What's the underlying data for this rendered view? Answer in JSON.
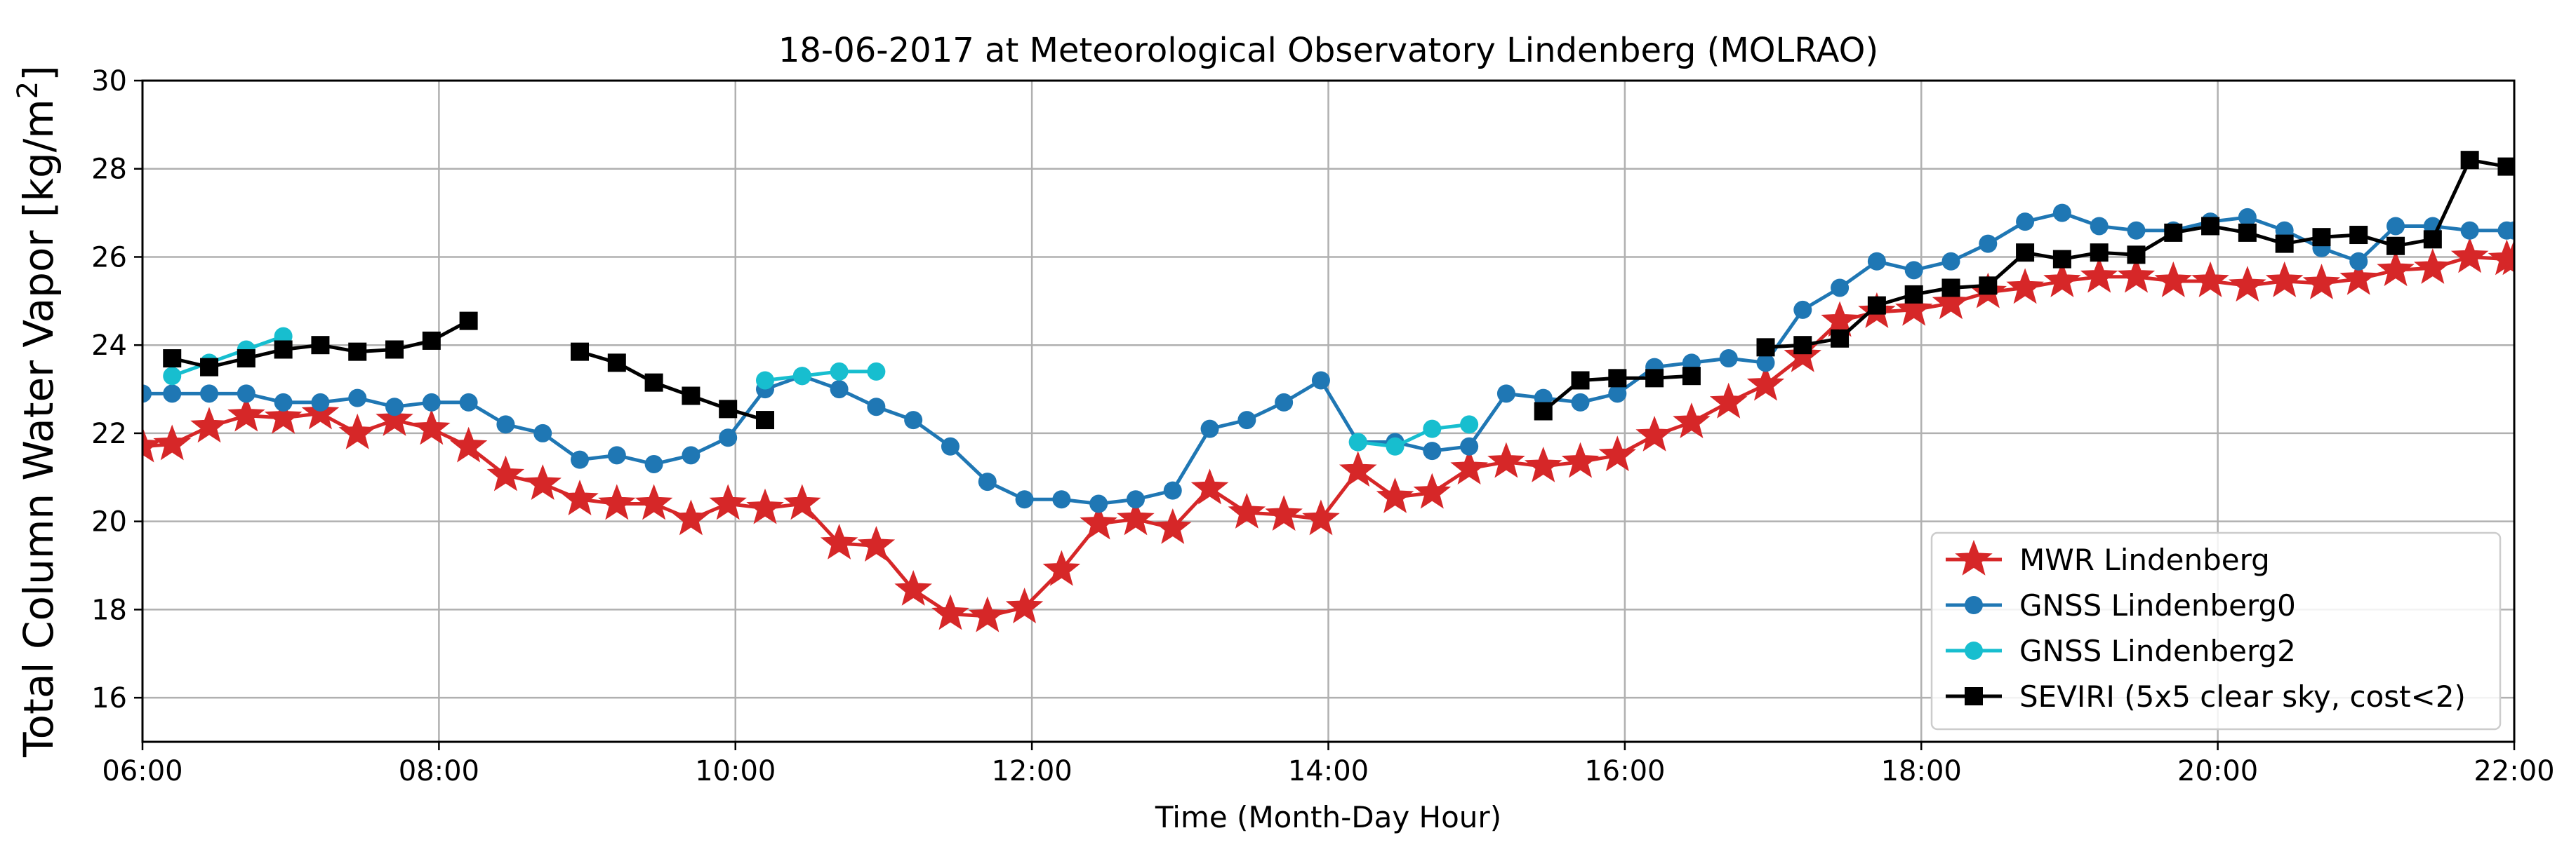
{
  "chart_data": {
    "type": "line",
    "title": "18-06-2017 at Meteorological Observatory Lindenberg (MOLRAO)",
    "xlabel": "Time (Month-Day Hour)",
    "ylabel": "Total Column Water Vapor [kg/m",
    "ylabel_superscript": "2",
    "ylabel_close": "]",
    "xlim": [
      6.0,
      22.0
    ],
    "ylim": [
      15.0,
      30.0
    ],
    "xticks": [
      6,
      8,
      10,
      12,
      14,
      16,
      18,
      20,
      22
    ],
    "xtick_labels": [
      "06:00",
      "08:00",
      "10:00",
      "12:00",
      "14:00",
      "16:00",
      "18:00",
      "20:00",
      "22:00"
    ],
    "yticks": [
      16,
      18,
      20,
      22,
      24,
      26,
      28,
      30
    ],
    "ytick_labels": [
      "16",
      "18",
      "20",
      "22",
      "24",
      "26",
      "28",
      "30"
    ],
    "grid": true,
    "legend_position": "lower-right",
    "series": [
      {
        "name": "MWR Lindenberg",
        "color": "#d62728",
        "marker": "star",
        "segments": [
          [
            [
              6.0,
              21.7
            ],
            [
              6.2,
              21.75
            ],
            [
              6.45,
              22.15
            ],
            [
              6.7,
              22.4
            ],
            [
              6.95,
              22.35
            ],
            [
              7.2,
              22.45
            ],
            [
              7.45,
              22.0
            ],
            [
              7.7,
              22.3
            ],
            [
              7.95,
              22.1
            ],
            [
              8.2,
              21.7
            ],
            [
              8.45,
              21.05
            ],
            [
              8.7,
              20.85
            ],
            [
              8.95,
              20.5
            ],
            [
              9.2,
              20.4
            ],
            [
              9.45,
              20.4
            ],
            [
              9.7,
              20.05
            ],
            [
              9.95,
              20.4
            ],
            [
              10.2,
              20.3
            ],
            [
              10.45,
              20.4
            ],
            [
              10.7,
              19.5
            ],
            [
              10.95,
              19.45
            ],
            [
              11.2,
              18.45
            ],
            [
              11.45,
              17.9
            ],
            [
              11.7,
              17.85
            ],
            [
              11.95,
              18.05
            ],
            [
              12.2,
              18.9
            ],
            [
              12.45,
              19.95
            ],
            [
              12.7,
              20.05
            ],
            [
              12.95,
              19.85
            ],
            [
              13.2,
              20.75
            ],
            [
              13.45,
              20.2
            ],
            [
              13.7,
              20.15
            ],
            [
              13.95,
              20.05
            ],
            [
              14.2,
              21.15
            ],
            [
              14.45,
              20.55
            ],
            [
              14.7,
              20.65
            ],
            [
              14.95,
              21.2
            ],
            [
              15.2,
              21.35
            ],
            [
              15.45,
              21.25
            ],
            [
              15.7,
              21.35
            ],
            [
              15.95,
              21.5
            ],
            [
              16.2,
              21.95
            ],
            [
              16.45,
              22.25
            ],
            [
              16.7,
              22.7
            ],
            [
              16.95,
              23.1
            ],
            [
              17.2,
              23.75
            ],
            [
              17.45,
              24.55
            ],
            [
              17.7,
              24.75
            ],
            [
              17.95,
              24.8
            ],
            [
              18.2,
              24.95
            ],
            [
              18.45,
              25.2
            ],
            [
              18.7,
              25.3
            ],
            [
              18.95,
              25.45
            ],
            [
              19.2,
              25.55
            ],
            [
              19.45,
              25.55
            ],
            [
              19.7,
              25.45
            ],
            [
              19.95,
              25.45
            ],
            [
              20.2,
              25.35
            ],
            [
              20.45,
              25.45
            ],
            [
              20.7,
              25.4
            ],
            [
              20.95,
              25.5
            ],
            [
              21.2,
              25.7
            ],
            [
              21.45,
              25.75
            ],
            [
              21.7,
              26.0
            ],
            [
              21.95,
              25.95
            ],
            [
              22.0,
              25.95
            ]
          ]
        ]
      },
      {
        "name": "GNSS Lindenberg0",
        "color": "#1f77b4",
        "marker": "circle",
        "segments": [
          [
            [
              6.0,
              22.9
            ],
            [
              6.2,
              22.9
            ],
            [
              6.45,
              22.9
            ],
            [
              6.7,
              22.9
            ],
            [
              6.95,
              22.7
            ],
            [
              7.2,
              22.7
            ],
            [
              7.45,
              22.8
            ],
            [
              7.7,
              22.6
            ],
            [
              7.95,
              22.7
            ],
            [
              8.2,
              22.7
            ],
            [
              8.45,
              22.2
            ],
            [
              8.7,
              22.0
            ],
            [
              8.95,
              21.4
            ],
            [
              9.2,
              21.5
            ],
            [
              9.45,
              21.3
            ],
            [
              9.7,
              21.5
            ],
            [
              9.95,
              21.9
            ],
            [
              10.2,
              23.0
            ],
            [
              10.45,
              23.3
            ],
            [
              10.7,
              23.0
            ],
            [
              10.95,
              22.6
            ],
            [
              11.2,
              22.3
            ],
            [
              11.45,
              21.7
            ],
            [
              11.7,
              20.9
            ],
            [
              11.95,
              20.5
            ],
            [
              12.2,
              20.5
            ],
            [
              12.45,
              20.4
            ],
            [
              12.7,
              20.5
            ],
            [
              12.95,
              20.7
            ],
            [
              13.2,
              22.1
            ],
            [
              13.45,
              22.3
            ],
            [
              13.7,
              22.7
            ],
            [
              13.95,
              23.2
            ],
            [
              14.2,
              21.8
            ],
            [
              14.45,
              21.8
            ],
            [
              14.7,
              21.6
            ],
            [
              14.95,
              21.7
            ],
            [
              15.2,
              22.9
            ],
            [
              15.45,
              22.8
            ],
            [
              15.7,
              22.7
            ],
            [
              15.95,
              22.9
            ],
            [
              16.2,
              23.5
            ],
            [
              16.45,
              23.6
            ],
            [
              16.7,
              23.7
            ],
            [
              16.95,
              23.6
            ],
            [
              17.2,
              24.8
            ],
            [
              17.45,
              25.3
            ],
            [
              17.7,
              25.9
            ],
            [
              17.95,
              25.7
            ],
            [
              18.2,
              25.9
            ],
            [
              18.45,
              26.3
            ],
            [
              18.7,
              26.8
            ],
            [
              18.95,
              27.0
            ],
            [
              19.2,
              26.7
            ],
            [
              19.45,
              26.6
            ],
            [
              19.7,
              26.6
            ],
            [
              19.95,
              26.8
            ],
            [
              20.2,
              26.9
            ],
            [
              20.45,
              26.6
            ],
            [
              20.7,
              26.2
            ],
            [
              20.95,
              25.9
            ],
            [
              21.2,
              26.7
            ],
            [
              21.45,
              26.7
            ],
            [
              21.7,
              26.6
            ],
            [
              21.95,
              26.6
            ],
            [
              22.0,
              26.6
            ]
          ]
        ]
      },
      {
        "name": "GNSS Lindenberg2",
        "color": "#17becf",
        "marker": "circle",
        "segments": [
          [
            [
              6.2,
              23.3
            ],
            [
              6.45,
              23.6
            ],
            [
              6.7,
              23.9
            ],
            [
              6.95,
              24.2
            ]
          ],
          [
            [
              10.2,
              23.2
            ],
            [
              10.45,
              23.3
            ],
            [
              10.7,
              23.4
            ],
            [
              10.95,
              23.4
            ]
          ],
          [
            [
              14.2,
              21.8
            ],
            [
              14.45,
              21.7
            ],
            [
              14.7,
              22.1
            ],
            [
              14.95,
              22.2
            ]
          ]
        ]
      },
      {
        "name": "SEVIRI (5x5 clear sky, cost<2)",
        "color": "#000000",
        "marker": "square",
        "segments": [
          [
            [
              6.2,
              23.7
            ],
            [
              6.45,
              23.5
            ],
            [
              6.7,
              23.7
            ],
            [
              6.95,
              23.9
            ],
            [
              7.2,
              24.0
            ],
            [
              7.45,
              23.85
            ],
            [
              7.7,
              23.9
            ],
            [
              7.95,
              24.1
            ],
            [
              8.2,
              24.55
            ]
          ],
          [
            [
              8.95,
              23.85
            ],
            [
              9.2,
              23.6
            ],
            [
              9.45,
              23.15
            ],
            [
              9.7,
              22.85
            ],
            [
              9.95,
              22.55
            ],
            [
              10.2,
              22.3
            ]
          ],
          [
            [
              15.45,
              22.5
            ],
            [
              15.7,
              23.2
            ],
            [
              15.95,
              23.25
            ],
            [
              16.2,
              23.25
            ],
            [
              16.45,
              23.3
            ]
          ],
          [
            [
              16.95,
              23.95
            ],
            [
              17.2,
              24.0
            ],
            [
              17.45,
              24.15
            ],
            [
              17.7,
              24.9
            ],
            [
              17.95,
              25.15
            ],
            [
              18.2,
              25.3
            ],
            [
              18.45,
              25.35
            ],
            [
              18.7,
              26.1
            ],
            [
              18.95,
              25.95
            ],
            [
              19.2,
              26.1
            ],
            [
              19.45,
              26.05
            ],
            [
              19.7,
              26.55
            ],
            [
              19.95,
              26.7
            ],
            [
              20.2,
              26.55
            ],
            [
              20.45,
              26.3
            ],
            [
              20.7,
              26.45
            ],
            [
              20.95,
              26.5
            ],
            [
              21.2,
              26.25
            ],
            [
              21.45,
              26.4
            ],
            [
              21.7,
              28.2
            ],
            [
              21.95,
              28.05
            ]
          ]
        ]
      }
    ]
  }
}
